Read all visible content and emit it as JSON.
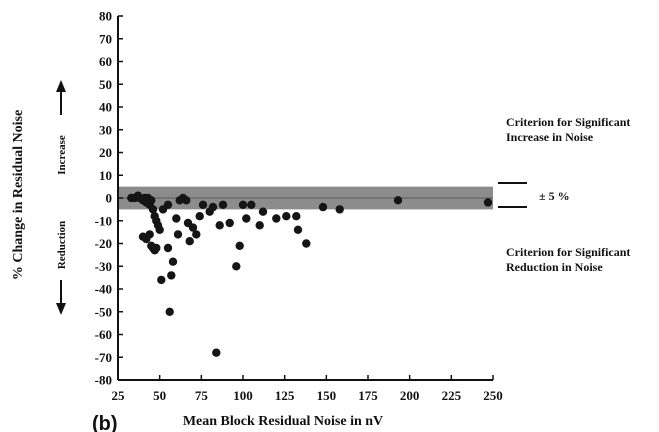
{
  "chart_data": {
    "type": "scatter",
    "title": "",
    "panel_label": "(b)",
    "xlabel": "Mean Block Residual Noise in nV",
    "ylabel": "% Change in Residual Noise",
    "ylabel_increase": "Increase",
    "ylabel_reduction": "Reduction",
    "xlim": [
      25,
      250
    ],
    "ylim": [
      -80,
      80
    ],
    "xticks": [
      25,
      50,
      75,
      100,
      125,
      150,
      175,
      200,
      225,
      250
    ],
    "yticks": [
      80,
      70,
      60,
      50,
      40,
      30,
      20,
      10,
      0,
      -10,
      -20,
      -30,
      -40,
      -50,
      -60,
      -70,
      -80
    ],
    "grid": false,
    "band": {
      "low": -5,
      "high": 5,
      "label": "± 5 %"
    },
    "annotations": {
      "increase_line1": "Criterion for Significant",
      "increase_line2": "Increase in Noise",
      "reduction_line1": "Criterion for Significant",
      "reduction_line2": "Reduction in Noise"
    },
    "points": [
      {
        "x": 33,
        "y": 0
      },
      {
        "x": 35,
        "y": 0
      },
      {
        "x": 37,
        "y": 1
      },
      {
        "x": 38,
        "y": 0
      },
      {
        "x": 40,
        "y": -1
      },
      {
        "x": 41,
        "y": 0
      },
      {
        "x": 42,
        "y": -2
      },
      {
        "x": 43,
        "y": 0
      },
      {
        "x": 44,
        "y": -3
      },
      {
        "x": 45,
        "y": -1
      },
      {
        "x": 46,
        "y": -5
      },
      {
        "x": 47,
        "y": -8
      },
      {
        "x": 48,
        "y": -10
      },
      {
        "x": 49,
        "y": -12
      },
      {
        "x": 50,
        "y": -14
      },
      {
        "x": 52,
        "y": -5
      },
      {
        "x": 55,
        "y": -3
      },
      {
        "x": 40,
        "y": -17
      },
      {
        "x": 42,
        "y": -18
      },
      {
        "x": 44,
        "y": -16
      },
      {
        "x": 45,
        "y": -21
      },
      {
        "x": 46,
        "y": -22
      },
      {
        "x": 47,
        "y": -23
      },
      {
        "x": 48,
        "y": -22
      },
      {
        "x": 51,
        "y": -36
      },
      {
        "x": 55,
        "y": -22
      },
      {
        "x": 57,
        "y": -34
      },
      {
        "x": 58,
        "y": -28
      },
      {
        "x": 56,
        "y": -50
      },
      {
        "x": 60,
        "y": -9
      },
      {
        "x": 61,
        "y": -16
      },
      {
        "x": 62,
        "y": -1
      },
      {
        "x": 64,
        "y": 0
      },
      {
        "x": 66,
        "y": -1
      },
      {
        "x": 67,
        "y": -11
      },
      {
        "x": 68,
        "y": -19
      },
      {
        "x": 70,
        "y": -13
      },
      {
        "x": 72,
        "y": -16
      },
      {
        "x": 74,
        "y": -8
      },
      {
        "x": 76,
        "y": -3
      },
      {
        "x": 80,
        "y": -6
      },
      {
        "x": 82,
        "y": -4
      },
      {
        "x": 84,
        "y": -68
      },
      {
        "x": 86,
        "y": -12
      },
      {
        "x": 88,
        "y": -3
      },
      {
        "x": 92,
        "y": -11
      },
      {
        "x": 96,
        "y": -30
      },
      {
        "x": 98,
        "y": -21
      },
      {
        "x": 100,
        "y": -3
      },
      {
        "x": 102,
        "y": -9
      },
      {
        "x": 105,
        "y": -3
      },
      {
        "x": 110,
        "y": -12
      },
      {
        "x": 112,
        "y": -6
      },
      {
        "x": 120,
        "y": -9
      },
      {
        "x": 126,
        "y": -8
      },
      {
        "x": 132,
        "y": -8
      },
      {
        "x": 133,
        "y": -14
      },
      {
        "x": 138,
        "y": -20
      },
      {
        "x": 148,
        "y": -4
      },
      {
        "x": 158,
        "y": -5
      },
      {
        "x": 193,
        "y": -1
      },
      {
        "x": 247,
        "y": -2
      }
    ]
  }
}
